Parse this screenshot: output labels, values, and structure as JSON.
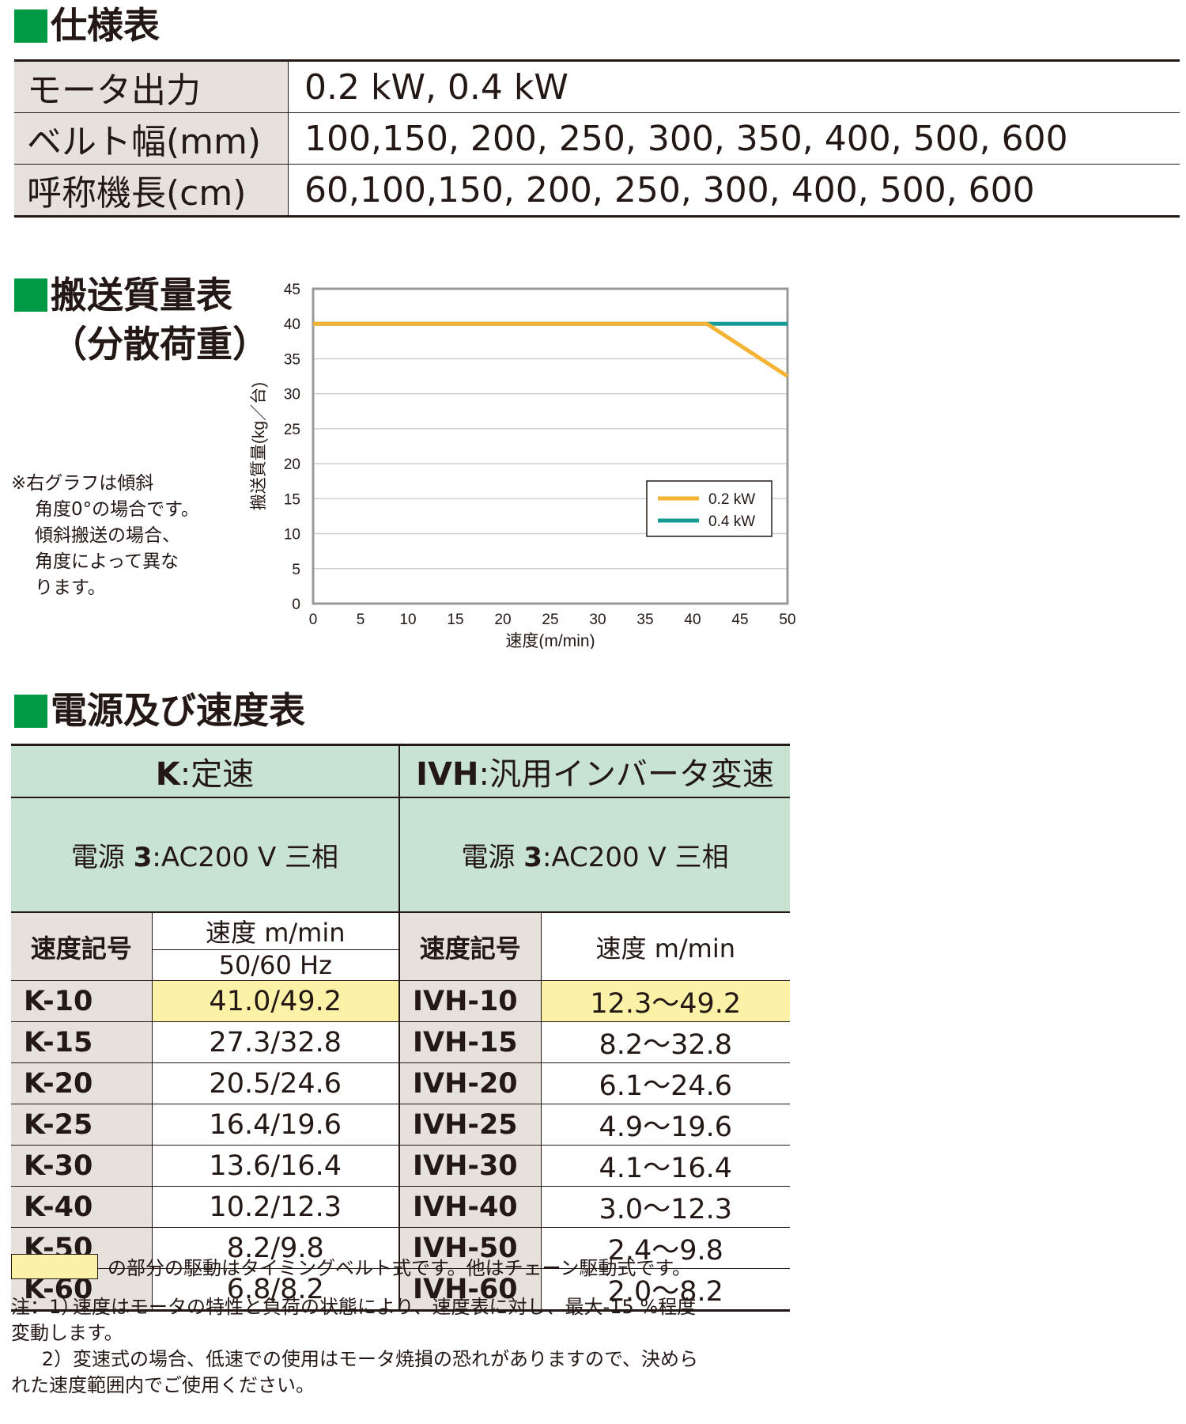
{
  "colors": {
    "square": "#009944",
    "series_02": "#f5b335",
    "series_04": "#159b95",
    "header_green": "#c8e3d1",
    "highlight_yellow": "#fbf2a8",
    "label_gray": "#e6e1db"
  },
  "spec": {
    "title": "仕様表",
    "rows": [
      {
        "label": "モータ出力",
        "value": "0.2 kW, 0.4 kW"
      },
      {
        "label": "ベルト幅(mm)",
        "value": "100,150, 200, 250, 300, 350, 400, 500, 600"
      },
      {
        "label": "呼称機長(cm)",
        "value": "60,100,150, 200, 250, 300, 400, 500, 600"
      }
    ]
  },
  "load": {
    "title": "搬送質量表\n（分散荷重）",
    "note": [
      "※右グラフは傾斜",
      "角度0°の場合です。",
      "傾斜搬送の場合、",
      "角度によって異な",
      "ります。"
    ]
  },
  "chart_data": {
    "type": "line",
    "xlabel": "速度(m/min)",
    "ylabel": "搬送質量(kg／台)",
    "xlim": [
      0,
      50
    ],
    "ylim": [
      0,
      45
    ],
    "xticks": [
      0,
      5,
      10,
      15,
      20,
      25,
      30,
      35,
      40,
      45,
      50
    ],
    "yticks": [
      0,
      5,
      10,
      15,
      20,
      25,
      30,
      35,
      40,
      45
    ],
    "grid": "horizontal",
    "legend_position": "bottom-right",
    "series": [
      {
        "name": "0.4 kW",
        "color": "#159b95",
        "points": [
          [
            0,
            40
          ],
          [
            50,
            40
          ]
        ]
      },
      {
        "name": "0.2 kW",
        "color": "#f5b335",
        "points": [
          [
            0,
            40
          ],
          [
            41.5,
            40
          ],
          [
            50,
            32.5
          ]
        ]
      }
    ]
  },
  "power": {
    "title": "電源及び速度表",
    "k_header": {
      "bold": "K",
      "rest": ":定速"
    },
    "ivh_header": {
      "bold": "IVH",
      "rest": ":汎用インバータ変速"
    },
    "supply": {
      "pre": "電源 ",
      "bold": "3",
      "post": ":AC200 V 三相"
    },
    "code_label": "速度記号",
    "speed_label": "速度 m/min",
    "hz_label": "50/60 Hz",
    "rows": [
      {
        "k": "K-10",
        "k_speed": "41.0/49.2",
        "ivh": "IVH-10",
        "ivh_speed": "12.3～49.2"
      },
      {
        "k": "K-15",
        "k_speed": "27.3/32.8",
        "ivh": "IVH-15",
        "ivh_speed": "8.2～32.8"
      },
      {
        "k": "K-20",
        "k_speed": "20.5/24.6",
        "ivh": "IVH-20",
        "ivh_speed": "6.1～24.6"
      },
      {
        "k": "K-25",
        "k_speed": "16.4/19.6",
        "ivh": "IVH-25",
        "ivh_speed": "4.9～19.6"
      },
      {
        "k": "K-30",
        "k_speed": "13.6/16.4",
        "ivh": "IVH-30",
        "ivh_speed": "4.1～16.4"
      },
      {
        "k": "K-40",
        "k_speed": "10.2/12.3",
        "ivh": "IVH-40",
        "ivh_speed": "3.0～12.3"
      },
      {
        "k": "K-50",
        "k_speed": "8.2/9.8",
        "ivh": "IVH-50",
        "ivh_speed": "2.4～9.8"
      },
      {
        "k": "K-60",
        "k_speed": "6.8/8.2",
        "ivh": "IVH-60",
        "ivh_speed": "2.0～8.2"
      }
    ],
    "legend_text": "の部分の駆動はタイミングベルト式です。他はチェーン駆動式です。",
    "notes": [
      {
        "lead": "注：1）",
        "lines": [
          "速度はモータの特性と負荷の状態により、速度表に対し、最大-15 %程度",
          "変動します。"
        ]
      },
      {
        "lead": "2）",
        "lines": [
          "変速式の場合、低速での使用はモータ焼損の恐れがありますので、決めら",
          "れた速度範囲内でご使用ください。"
        ]
      }
    ]
  }
}
